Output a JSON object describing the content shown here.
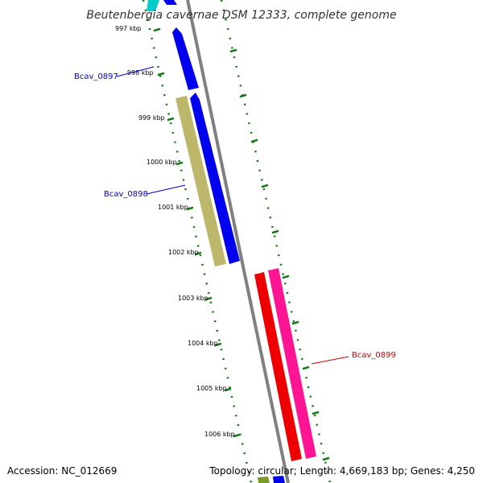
{
  "title": "Beutenbergia cavernae DSM 12333, complete genome",
  "footer": {
    "accession": "Accession: NC_012669",
    "topology": "Topology: circular; Length: 4,669,183 bp; Genes: 4,250"
  },
  "ticks": [
    "997 kbp",
    "998 kbp",
    "999 kbp",
    "1000 kbp",
    "1001 kbp",
    "1002 kbp",
    "1003 kbp",
    "1004 kbp",
    "1005 kbp",
    "1006 kbp"
  ],
  "gene_labels": [
    {
      "name": "Bcav_0897",
      "color": "#0000cc"
    },
    {
      "name": "Bcav_0898",
      "color": "#0000cc"
    },
    {
      "name": "Bcav_0899",
      "color": "#cc0000"
    }
  ],
  "colors": {
    "backbone": "#808080",
    "tick": "#117711",
    "gene_blue": "#0000ee",
    "gene_olive": "#bdb76b",
    "gene_red": "#ee0000",
    "gene_pink": "#ff1493",
    "gene_cyan": "#00cccc",
    "gene_green": "#7a9a2a"
  }
}
